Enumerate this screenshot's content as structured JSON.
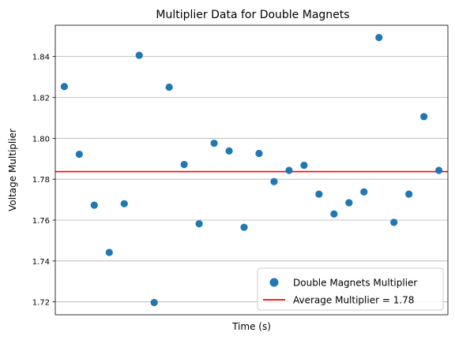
{
  "chart_data": {
    "type": "scatter",
    "title": "Multiplier Data for Double Magnets",
    "xlabel": "Time (s)",
    "ylabel": "Voltage Multiplier",
    "xlim": [
      -0.6,
      25.6
    ],
    "ylim": [
      1.7137,
      1.8553
    ],
    "grid": "y",
    "y_ticks": [
      1.72,
      1.74,
      1.76,
      1.78,
      1.8,
      1.82,
      1.84
    ],
    "y_tick_labels": [
      "1.72",
      "1.74",
      "1.76",
      "1.78",
      "1.80",
      "1.82",
      "1.84"
    ],
    "x": [
      0,
      1,
      2,
      3,
      4,
      5,
      6,
      7,
      8,
      9,
      10,
      11,
      12,
      13,
      14,
      15,
      16,
      17,
      18,
      19,
      20,
      21,
      22,
      23,
      24,
      25
    ],
    "series": [
      {
        "name": "Double Magnets Multiplier",
        "color": "#1f77b4",
        "values": [
          1.8253,
          1.7922,
          1.7673,
          1.7442,
          1.768,
          1.8406,
          1.7197,
          1.825,
          1.7872,
          1.7582,
          1.7976,
          1.7938,
          1.7565,
          1.7926,
          1.7788,
          1.7843,
          1.7868,
          1.7727,
          1.763,
          1.7685,
          1.7738,
          1.8493,
          1.7589,
          1.7727,
          1.8106,
          1.7843
        ]
      }
    ],
    "average": {
      "value": 1.7837,
      "name": "Average Multiplier = 1.78",
      "color": "#ff0000"
    },
    "legend": "lower-right"
  }
}
